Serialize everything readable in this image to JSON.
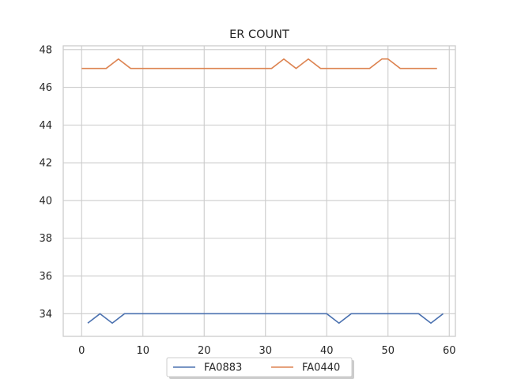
{
  "chart_data": {
    "type": "line",
    "title": "ER COUNT",
    "xlabel": "",
    "ylabel": "",
    "xlim": [
      -3,
      61
    ],
    "ylim": [
      32.8,
      48.2
    ],
    "xticks": [
      0,
      10,
      20,
      30,
      40,
      50,
      60
    ],
    "yticks": [
      34,
      36,
      38,
      40,
      42,
      44,
      46,
      48
    ],
    "grid": true,
    "legend_position": "bottom-center",
    "series": [
      {
        "name": "FA0883",
        "color": "#4c72b0",
        "points": [
          [
            1,
            33.5
          ],
          [
            3,
            34
          ],
          [
            5,
            33.5
          ],
          [
            7,
            34
          ],
          [
            40,
            34
          ],
          [
            42,
            33.5
          ],
          [
            44,
            34
          ],
          [
            55,
            34
          ],
          [
            57,
            33.5
          ],
          [
            59,
            34
          ]
        ]
      },
      {
        "name": "FA0440",
        "color": "#dd8452",
        "points": [
          [
            0,
            47
          ],
          [
            4,
            47
          ],
          [
            6,
            47.5
          ],
          [
            8,
            47
          ],
          [
            31,
            47
          ],
          [
            33,
            47.5
          ],
          [
            35,
            47
          ],
          [
            37,
            47.5
          ],
          [
            39,
            47
          ],
          [
            47,
            47
          ],
          [
            49,
            47.5
          ],
          [
            50,
            47.5
          ],
          [
            52,
            47
          ],
          [
            58,
            47
          ]
        ]
      }
    ]
  }
}
